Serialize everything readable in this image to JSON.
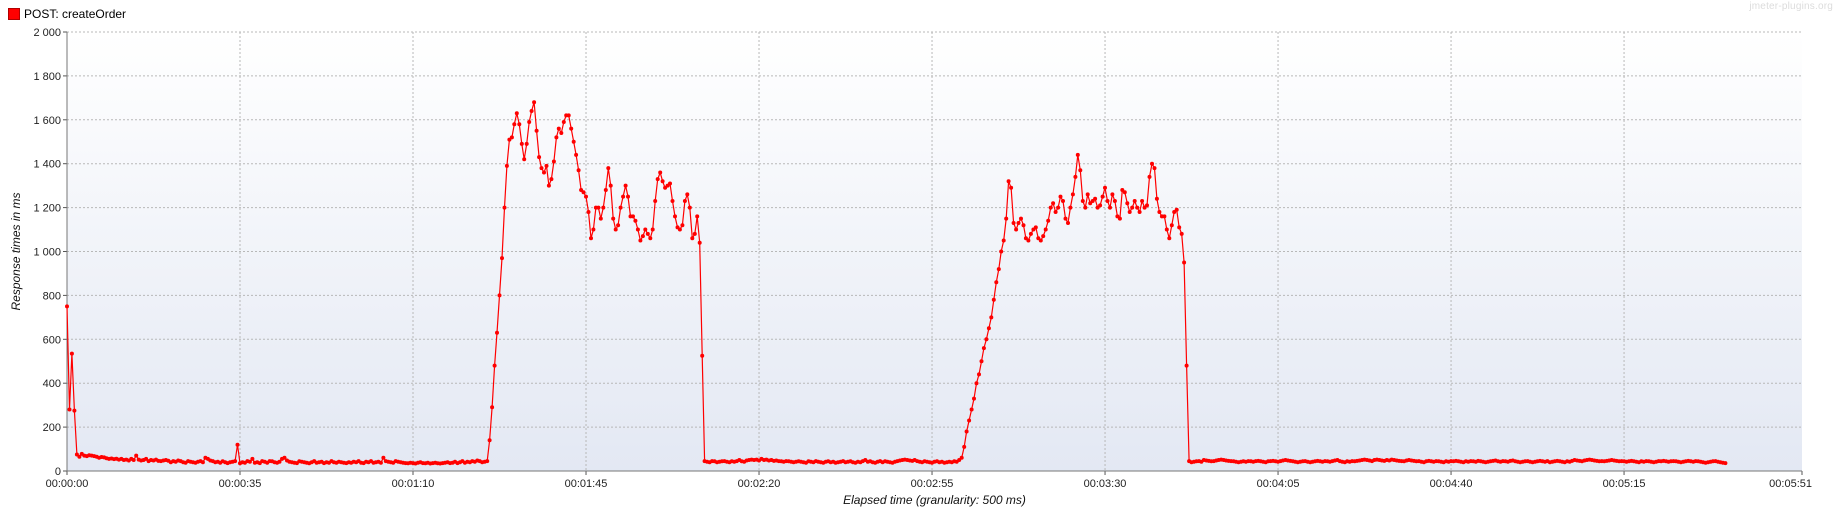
{
  "legend": {
    "label": "POST: createOrder",
    "color": "#ff0000"
  },
  "watermark": "jmeter-plugins.org",
  "chart_data": {
    "type": "line",
    "series": [
      {
        "name": "POST: createOrder",
        "color": "#ff0000",
        "x_start_s": 0,
        "x_step_s": 0.5,
        "values": [
          750,
          280,
          535,
          275,
          75,
          65,
          78,
          70,
          68,
          72,
          70,
          68,
          65,
          60,
          64,
          62,
          58,
          55,
          57,
          54,
          56,
          52,
          55,
          50,
          52,
          48,
          55,
          50,
          70,
          52,
          48,
          50,
          55,
          45,
          50,
          48,
          52,
          46,
          45,
          48,
          50,
          47,
          40,
          45,
          42,
          48,
          45,
          40,
          38,
          45,
          42,
          40,
          38,
          42,
          45,
          40,
          60,
          55,
          48,
          45,
          40,
          42,
          38,
          44,
          40,
          36,
          40,
          42,
          45,
          120,
          35,
          40,
          38,
          45,
          42,
          55,
          38,
          40,
          36,
          45,
          42,
          38,
          45,
          44,
          40,
          38,
          42,
          55,
          60,
          48,
          42,
          40,
          38,
          36,
          44,
          42,
          40,
          38,
          35,
          40,
          45,
          38,
          40,
          42,
          36,
          40,
          38,
          45,
          40,
          38,
          42,
          40,
          38,
          36,
          40,
          38,
          42,
          40,
          45,
          38,
          36,
          42,
          40,
          45,
          38,
          40,
          42,
          38,
          60,
          45,
          42,
          40,
          38,
          45,
          42,
          40,
          38,
          36,
          35,
          38,
          36,
          34,
          38,
          40,
          36,
          35,
          38,
          34,
          36,
          38,
          35,
          34,
          36,
          38,
          40,
          36,
          38,
          42,
          36,
          40,
          45,
          38,
          42,
          40,
          45,
          42,
          48,
          45,
          40,
          42,
          45,
          140,
          290,
          480,
          630,
          800,
          970,
          1200,
          1390,
          1510,
          1520,
          1580,
          1630,
          1580,
          1490,
          1420,
          1490,
          1590,
          1640,
          1680,
          1550,
          1430,
          1380,
          1360,
          1390,
          1300,
          1330,
          1410,
          1520,
          1560,
          1540,
          1590,
          1620,
          1620,
          1560,
          1500,
          1440,
          1370,
          1280,
          1270,
          1250,
          1180,
          1060,
          1100,
          1200,
          1200,
          1150,
          1200,
          1280,
          1380,
          1300,
          1150,
          1100,
          1120,
          1200,
          1250,
          1300,
          1250,
          1160,
          1160,
          1140,
          1100,
          1050,
          1070,
          1100,
          1080,
          1060,
          1100,
          1230,
          1330,
          1360,
          1320,
          1290,
          1300,
          1310,
          1230,
          1160,
          1110,
          1100,
          1120,
          1230,
          1260,
          1200,
          1060,
          1080,
          1160,
          1040,
          525,
          45,
          42,
          40,
          45,
          44,
          40,
          42,
          44,
          45,
          42,
          40,
          44,
          42,
          45,
          50,
          44,
          42,
          48,
          50,
          52,
          50,
          52,
          48,
          55,
          50,
          52,
          48,
          50,
          46,
          48,
          45,
          44,
          42,
          45,
          44,
          42,
          40,
          42,
          44,
          42,
          40,
          38,
          44,
          42,
          40,
          45,
          42,
          40,
          38,
          42,
          44,
          40,
          42,
          38,
          40,
          42,
          45,
          40,
          42,
          44,
          40,
          38,
          42,
          40,
          45,
          50,
          42,
          44,
          40,
          38,
          42,
          45,
          40,
          44,
          42,
          40,
          38,
          42,
          45,
          48,
          50,
          52,
          50,
          48,
          46,
          50,
          45,
          42,
          40,
          44,
          42,
          40,
          38,
          42,
          44,
          40,
          42,
          38,
          40,
          42,
          40,
          44,
          42,
          50,
          60,
          110,
          180,
          230,
          280,
          330,
          400,
          440,
          500,
          560,
          600,
          650,
          700,
          780,
          860,
          920,
          1000,
          1050,
          1150,
          1320,
          1290,
          1130,
          1100,
          1130,
          1150,
          1120,
          1060,
          1050,
          1080,
          1100,
          1110,
          1060,
          1050,
          1070,
          1100,
          1140,
          1200,
          1220,
          1180,
          1200,
          1250,
          1230,
          1150,
          1130,
          1200,
          1260,
          1340,
          1440,
          1370,
          1230,
          1200,
          1260,
          1220,
          1230,
          1240,
          1200,
          1210,
          1250,
          1290,
          1230,
          1200,
          1260,
          1230,
          1160,
          1150,
          1280,
          1270,
          1220,
          1180,
          1200,
          1230,
          1200,
          1180,
          1230,
          1200,
          1210,
          1340,
          1400,
          1380,
          1240,
          1180,
          1160,
          1160,
          1100,
          1060,
          1120,
          1180,
          1190,
          1110,
          1080,
          950,
          480,
          45,
          40,
          42,
          44,
          45,
          42,
          50,
          48,
          46,
          44,
          45,
          48,
          50,
          52,
          50,
          48,
          46,
          45,
          44,
          42,
          40,
          42,
          44,
          42,
          45,
          44,
          42,
          45,
          46,
          44,
          42,
          40,
          44,
          45,
          46,
          44,
          42,
          45,
          48,
          50,
          48,
          46,
          44,
          42,
          40,
          42,
          44,
          45,
          42,
          40,
          42,
          44,
          46,
          44,
          42,
          45,
          44,
          42,
          45,
          48,
          50,
          45,
          42,
          40,
          44,
          42,
          45,
          44,
          46,
          48,
          50,
          52,
          50,
          48,
          45,
          50,
          52,
          50,
          48,
          46,
          50,
          48,
          52,
          50,
          48,
          46,
          45,
          44,
          48,
          50,
          48,
          46,
          44,
          45,
          42,
          40,
          44,
          46,
          44,
          42,
          45,
          44,
          42,
          40,
          44,
          42,
          45,
          44,
          46,
          44,
          42,
          40,
          44,
          42,
          45,
          44,
          42,
          46,
          44,
          42,
          40,
          42,
          44,
          46,
          48,
          44,
          42,
          45,
          44,
          42,
          46,
          48,
          44,
          42,
          40,
          42,
          44,
          45,
          42,
          40,
          42,
          44,
          46,
          44,
          42,
          45,
          40,
          42,
          44,
          46,
          44,
          42,
          40,
          44,
          42,
          46,
          50,
          48,
          46,
          44,
          48,
          50,
          52,
          50,
          48,
          46,
          44,
          45,
          44,
          46,
          48,
          50,
          48,
          46,
          44,
          45,
          44,
          42,
          44,
          46,
          44,
          42,
          40,
          44,
          42,
          45,
          44,
          42,
          40,
          42,
          45,
          44,
          46,
          44,
          42,
          44,
          45,
          44,
          42,
          40,
          42,
          44,
          46,
          44,
          42,
          45,
          44,
          42,
          40,
          38,
          40,
          42,
          44,
          45,
          42,
          40,
          38,
          36
        ]
      }
    ],
    "xlabel": "Elapsed time (granularity: 500 ms)",
    "ylabel": "Response times in ms",
    "xlim_s": [
      0,
      351
    ],
    "xticks": [
      "00:00:00",
      "00:00:35",
      "00:01:10",
      "00:01:45",
      "00:02:20",
      "00:02:55",
      "00:03:30",
      "00:04:05",
      "00:04:40",
      "00:05:15",
      "00:05:51"
    ],
    "xtick_seconds": [
      0,
      35,
      70,
      105,
      140,
      175,
      210,
      245,
      280,
      315,
      351
    ],
    "ylim": [
      0,
      2000
    ],
    "yticks": [
      "0",
      "200",
      "400",
      "600",
      "800",
      "1 000",
      "1 200",
      "1 400",
      "1 600",
      "1 800",
      "2 000"
    ],
    "ytick_values": [
      0,
      200,
      400,
      600,
      800,
      1000,
      1200,
      1400,
      1600,
      1800,
      2000
    ],
    "grid": true,
    "legend_position": "top-left"
  }
}
